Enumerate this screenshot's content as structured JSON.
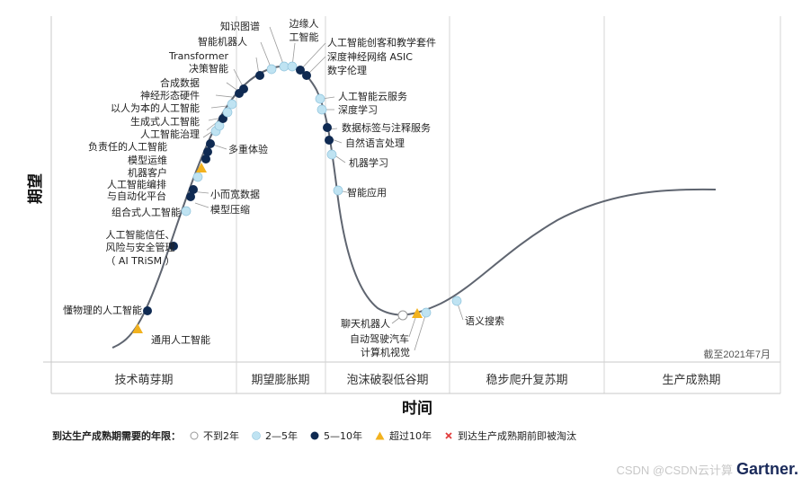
{
  "colors": {
    "curve": "#5f6570",
    "lt2": "#ffffff",
    "y2to5": "#bfe3f2",
    "y5to10": "#0f2a52",
    "gt10": "#f2b21e",
    "obsolete": "#e23b3b",
    "grid": "#c8c8c8",
    "phase_band": "#f4f4f4"
  },
  "axis": {
    "y_label": "期望",
    "x_label": "时间"
  },
  "phases": [
    "技术萌芽期",
    "期望膨胀期",
    "泡沫破裂低谷期",
    "稳步爬升复苏期",
    "生产成熟期"
  ],
  "as_of": "截至2021年7月",
  "legend": {
    "title": "到达生产成熟期需要的年限：",
    "items": [
      {
        "label": "不到2年",
        "type": "lt2"
      },
      {
        "label": "2—5年",
        "type": "y2to5"
      },
      {
        "label": "5—10年",
        "type": "y5to10"
      },
      {
        "label": "超过10年",
        "type": "gt10"
      },
      {
        "label": "到达生产成熟期前即被淘汰",
        "type": "obsolete"
      }
    ]
  },
  "technologies": [
    {
      "name": "通用人工智能",
      "category": "gt10"
    },
    {
      "name": "懂物理的人工智能",
      "category": "y5to10"
    },
    {
      "name": "人工智能信任、风险与安全管理（AI TRiSM）",
      "category": "y5to10"
    },
    {
      "name": "组合式人工智能",
      "category": "y2to5"
    },
    {
      "name": "模型压缩",
      "category": "y5to10"
    },
    {
      "name": "小而宽数据",
      "category": "y5to10"
    },
    {
      "name": "人工智能编排与自动化平台",
      "category": "y2to5"
    },
    {
      "name": "机器客户",
      "category": "gt10"
    },
    {
      "name": "模型运维",
      "category": "y5to10"
    },
    {
      "name": "负责任的人工智能",
      "category": "y5to10"
    },
    {
      "name": "多重体验",
      "category": "y5to10"
    },
    {
      "name": "人工智能治理",
      "category": "y2to5"
    },
    {
      "name": "生成式人工智能",
      "category": "y2to5"
    },
    {
      "name": "以人为本的人工智能",
      "category": "y5to10"
    },
    {
      "name": "神经形态硬件",
      "category": "y2to5"
    },
    {
      "name": "合成数据",
      "category": "y2to5"
    },
    {
      "name": "决策智能",
      "category": "y5to10"
    },
    {
      "name": "Transformer",
      "category": "y5to10"
    },
    {
      "name": "智能机器人",
      "category": "y5to10"
    },
    {
      "name": "知识图谱",
      "category": "y2to5"
    },
    {
      "name": "边缘人工智能",
      "category": "y2to5"
    },
    {
      "name": "人工智能创客和教学套件",
      "category": "y2to5"
    },
    {
      "name": "深度神经网络ASIC",
      "category": "y5to10"
    },
    {
      "name": "数字伦理",
      "category": "y5to10"
    },
    {
      "name": "人工智能云服务",
      "category": "y2to5"
    },
    {
      "name": "深度学习",
      "category": "y2to5"
    },
    {
      "name": "数据标签与注释服务",
      "category": "y5to10"
    },
    {
      "name": "自然语言处理",
      "category": "y5to10"
    },
    {
      "name": "机器学习",
      "category": "y2to5"
    },
    {
      "name": "智能应用",
      "category": "y2to5"
    },
    {
      "name": "聊天机器人",
      "category": "lt2"
    },
    {
      "name": "自动驾驶汽车",
      "category": "gt10"
    },
    {
      "name": "计算机视觉",
      "category": "y2to5"
    },
    {
      "name": "语义搜索",
      "category": "y2to5"
    }
  ],
  "label_lines": {
    "AI TRiSM": [
      "人工智能信任、",
      "风险与安全管理",
      "（ AI TRiSM ）"
    ],
    "边缘人工智能": [
      "边缘人",
      "工智能"
    ],
    "人工智能编排与自动化平台": [
      "人工智能编排",
      "与自动化平台"
    ],
    "深度神经网络ASIC": [
      "深度神经网络 ASIC"
    ]
  },
  "footer": {
    "watermark": "CSDN @CSDN云计算",
    "brand": "Gartner."
  }
}
